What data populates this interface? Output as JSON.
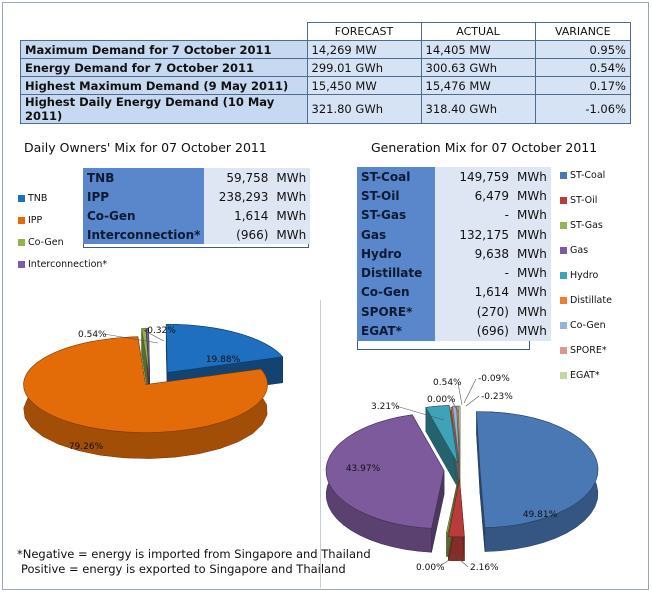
{
  "summary": {
    "headers": [
      "FORECAST",
      "ACTUAL",
      "VARIANCE"
    ],
    "rows": [
      {
        "label": "Maximum Demand for 7 October 2011",
        "forecast": "14,269",
        "forecast_unit": "MW",
        "actual": "14,405",
        "actual_unit": "MW",
        "variance": "0.95%"
      },
      {
        "label": "Energy Demand for 7 October 2011",
        "forecast": "299.01",
        "forecast_unit": "GWh",
        "actual": "300.63",
        "actual_unit": "GWh",
        "variance": "0.54%"
      },
      {
        "label": "Highest Maximum Demand (9 May 2011)",
        "forecast": "15,450",
        "forecast_unit": "MW",
        "actual": "15,476",
        "actual_unit": "MW",
        "variance": "0.17%"
      },
      {
        "label": "Highest Daily Energy Demand (10 May 2011)",
        "forecast": "321.80",
        "forecast_unit": "GWh",
        "actual": "318.40",
        "actual_unit": "GWh",
        "variance": "-1.06%"
      }
    ]
  },
  "owners": {
    "title": "Daily Owners' Mix for 07 October 2011",
    "rows": [
      {
        "label": "TNB",
        "value": "59,758",
        "unit": "MWh"
      },
      {
        "label": "IPP",
        "value": "238,293",
        "unit": "MWh"
      },
      {
        "label": "Co-Gen",
        "value": "1,614",
        "unit": "MWh"
      },
      {
        "label": "Interconnection*",
        "value": "(966)",
        "unit": "MWh"
      }
    ],
    "legend": [
      "TNB",
      "IPP",
      "Co-Gen",
      "Interconnection*"
    ]
  },
  "generation": {
    "title": "Generation Mix for 07 October 2011",
    "rows": [
      {
        "label": "ST-Coal",
        "value": "149,759",
        "unit": "MWh"
      },
      {
        "label": "ST-Oil",
        "value": "6,479",
        "unit": "MWh"
      },
      {
        "label": "ST-Gas",
        "value": "-",
        "unit": "MWh"
      },
      {
        "label": "Gas",
        "value": "132,175",
        "unit": "MWh"
      },
      {
        "label": "Hydro",
        "value": "9,638",
        "unit": "MWh"
      },
      {
        "label": "Distillate",
        "value": "-",
        "unit": "MWh"
      },
      {
        "label": "Co-Gen",
        "value": "1,614",
        "unit": "MWh"
      },
      {
        "label": "SPORE*",
        "value": "(270)",
        "unit": "MWh"
      },
      {
        "label": "EGAT*",
        "value": "(696)",
        "unit": "MWh"
      }
    ],
    "legend": [
      "ST-Coal",
      "ST-Oil",
      "ST-Gas",
      "Gas",
      "Hydro",
      "Distillate",
      "Co-Gen",
      "SPORE*",
      "EGAT*"
    ]
  },
  "note": {
    "line1": "*Negative = energy is imported from Singapore and Thailand",
    "line2": "Positive = energy is exported to Singapore and Thailand"
  },
  "colors": {
    "TNB": "#1f6fc0",
    "IPP": "#e36c09",
    "Co-Gen": "#8fb64a",
    "Interconnection*": "#7e5da2",
    "ST-Coal": "#4a78b5",
    "ST-Oil": "#b83d3a",
    "ST-Gas": "#93b556",
    "Gas": "#7d5a9c",
    "Hydro": "#3fa2b8",
    "Distillate": "#ed7d31",
    "Co-Gen-gen": "#95b2d8",
    "SPORE*": "#d99694",
    "EGAT*": "#c3d69b"
  },
  "chart_data": [
    {
      "type": "pie",
      "title": "Daily Owners' Mix for 07 October 2011",
      "categories": [
        "TNB",
        "IPP",
        "Co-Gen",
        "Interconnection*"
      ],
      "values": [
        19.88,
        79.26,
        0.54,
        -0.32
      ],
      "labels": [
        "19.88%",
        "79.26%",
        "0.54%",
        "-0.32%"
      ]
    },
    {
      "type": "pie",
      "title": "Generation Mix for 07 October 2011",
      "categories": [
        "ST-Coal",
        "ST-Oil",
        "ST-Gas",
        "Gas",
        "Hydro",
        "Distillate",
        "Co-Gen",
        "SPORE*",
        "EGAT*"
      ],
      "values": [
        49.81,
        2.16,
        0.0,
        43.97,
        3.21,
        0.0,
        0.54,
        -0.09,
        -0.23
      ],
      "labels": [
        "49.81%",
        "2.16%",
        "0.00%",
        "43.97%",
        "3.21%",
        "0.00%",
        "0.54%",
        "-0.09%",
        "-0.23%"
      ]
    }
  ]
}
